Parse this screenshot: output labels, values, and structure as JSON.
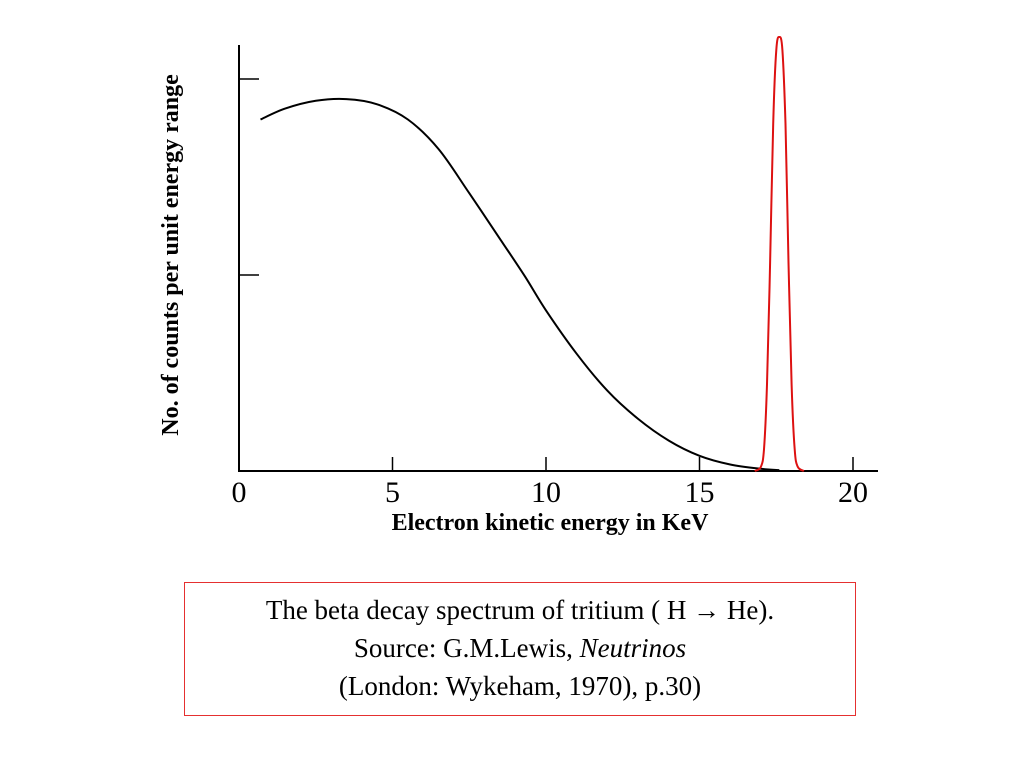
{
  "chart_data": {
    "type": "line",
    "xlabel": "Electron kinetic energy in KeV",
    "ylabel": "No. of counts per unit energy range",
    "xlim": [
      0,
      21
    ],
    "ylim": [
      0,
      1
    ],
    "x_ticks": [
      0,
      5,
      10,
      15,
      20
    ],
    "y_tick_count": 2,
    "y_tick_labels_shown": false,
    "grid": false,
    "series": [
      {
        "color": "#000000",
        "x": [
          0.7,
          1.5,
          2.5,
          3.5,
          4.5,
          5.5,
          6.5,
          7.5,
          8.5,
          9.3,
          10.0,
          11.0,
          12.0,
          13.0,
          14.0,
          15.0,
          16.0,
          17.0,
          17.6
        ],
        "y": [
          0.81,
          0.835,
          0.853,
          0.857,
          0.845,
          0.81,
          0.742,
          0.64,
          0.535,
          0.45,
          0.37,
          0.27,
          0.185,
          0.12,
          0.07,
          0.035,
          0.015,
          0.005,
          0.002
        ]
      },
      {
        "color": "#dd1111",
        "peak_center": 17.6,
        "peak_height": 1.0,
        "x": [
          16.8,
          17.0,
          17.1,
          17.2,
          17.3,
          17.4,
          17.5,
          17.6,
          17.7,
          17.8,
          17.9,
          18.0,
          18.1,
          18.2,
          18.4
        ],
        "y": [
          0.0,
          0.01,
          0.05,
          0.2,
          0.48,
          0.8,
          0.97,
          1.0,
          0.97,
          0.8,
          0.48,
          0.2,
          0.05,
          0.01,
          0.0
        ]
      }
    ]
  },
  "caption": {
    "line1": "The beta decay spectrum of tritium ( H →  He).",
    "line2_prefix": "Source: G.M.Lewis, ",
    "line2_title": "Neutrinos",
    "line3": "(London: Wykeham, 1970), p.30)"
  }
}
